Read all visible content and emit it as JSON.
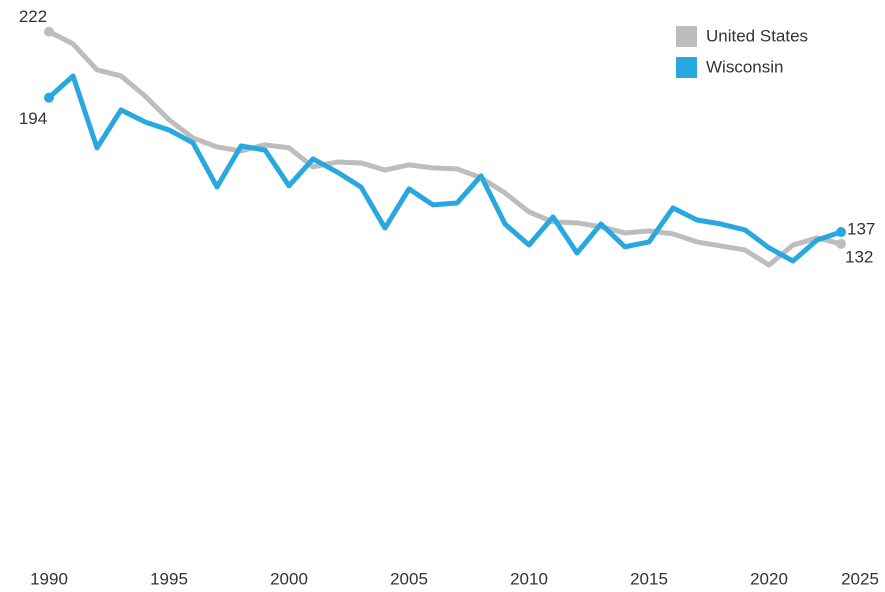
{
  "chart_data": {
    "type": "line",
    "x": [
      1990,
      1991,
      1992,
      1993,
      1994,
      1995,
      1996,
      1997,
      1998,
      1999,
      2000,
      2001,
      2002,
      2003,
      2004,
      2005,
      2006,
      2007,
      2008,
      2009,
      2010,
      2011,
      2012,
      2013,
      2014,
      2015,
      2016,
      2017,
      2018,
      2019,
      2020,
      2021,
      2022,
      2023
    ],
    "series": [
      {
        "name": "United States",
        "color": "#bdbdbd",
        "values": [
          222,
          216.8,
          205.8,
          203.2,
          194.7,
          184.6,
          176.9,
          173.1,
          171.4,
          174,
          172.7,
          164.6,
          166.7,
          166.3,
          163.3,
          165.5,
          164.2,
          163.8,
          160,
          153.6,
          145.5,
          141.3,
          140.9,
          139.2,
          136.6,
          137.5,
          136.2,
          132.8,
          131.1,
          129.4,
          123,
          131.5,
          134.5,
          132
        ]
      },
      {
        "name": "Wisconsin",
        "color": "#29a8e0",
        "values": [
          194,
          203.2,
          172.7,
          188.8,
          183.7,
          180.3,
          174.8,
          156.1,
          173.5,
          171.8,
          156.6,
          168,
          162.5,
          156.1,
          138.7,
          155.3,
          148.5,
          149.3,
          160.8,
          140.4,
          131.5,
          143.4,
          128.1,
          140.4,
          130.7,
          132.8,
          147.2,
          142.1,
          140.4,
          137.9,
          130.3,
          124.7,
          133.6,
          137
        ]
      }
    ],
    "xlim": [
      1990,
      2025
    ],
    "xticks": [
      1990,
      1995,
      2000,
      2005,
      2010,
      2015,
      2020,
      2025
    ],
    "ylim": [
      0,
      235
    ],
    "legend": "top-right"
  }
}
